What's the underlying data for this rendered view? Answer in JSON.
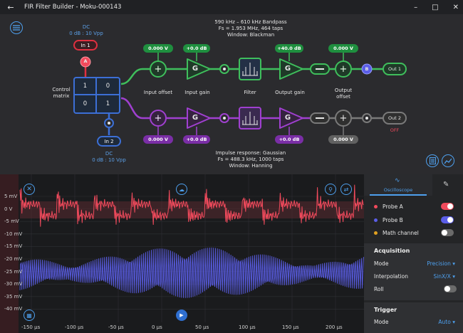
{
  "app": {
    "title": "FIR Filter Builder - Moku-000143"
  },
  "diagram": {
    "in1": {
      "coupling": "DC",
      "range": "0 dB : 10 Vpp",
      "label": "In 1",
      "probe": "A"
    },
    "in2": {
      "coupling": "DC",
      "range": "0 dB : 10 Vpp",
      "label": "In 2"
    },
    "control_matrix": {
      "label_line1": "Control",
      "label_line2": "matrix",
      "cells": [
        "1",
        "0",
        "0",
        "1"
      ]
    },
    "ch1": {
      "input_offset": "0.000 V",
      "input_gain": "+0.0 dB",
      "output_gain": "+40.0 dB",
      "output_offset": "0.000 V",
      "out_label": "Out 1",
      "probe": "B",
      "filter_info": [
        "590 kHz – 610 kHz Bandpass",
        "Fs = 1.953 MHz, 464 taps",
        "Window: Blackman"
      ]
    },
    "ch2": {
      "input_offset": "0.000 V",
      "input_gain": "+0.0 dB",
      "output_gain": "+0.0 dB",
      "output_offset": "0.000 V",
      "out_label": "Out 2",
      "out_state": "OFF",
      "filter_info": [
        "Impulse response: Gaussian",
        "Fs = 488.3 kHz, 1000 taps",
        "Window: Hanning"
      ]
    },
    "stage_labels": {
      "input_offset": "Input offset",
      "input_gain": "Input gain",
      "filter": "Filter",
      "output_gain": "Output gain",
      "output_offset_1": "Output",
      "output_offset_2": "offset"
    },
    "gain_glyph": "G"
  },
  "scope": {
    "y_ticks": [
      "5 mV",
      "0 V",
      "-5 mV",
      "-10 mV",
      "-15 mV",
      "-20 mV",
      "-25 mV",
      "-30 mV",
      "-35 mV",
      "-40 mV"
    ],
    "x_ticks": [
      "-150 µs",
      "-100 µs",
      "-50 µs",
      "0 µs",
      "50 µs",
      "100 µs",
      "150 µs",
      "200 µs"
    ],
    "probe_a_color": "#f04a5c",
    "probe_b_color": "#5b5ee8"
  },
  "panel": {
    "tab_label": "Oscilloscope",
    "probe_a": {
      "label": "Probe A",
      "on": true,
      "color": "#f04a5c"
    },
    "probe_b": {
      "label": "Probe B",
      "on": true,
      "color": "#5b5ee8"
    },
    "math": {
      "label": "Math channel",
      "on": false,
      "color": "#e0a020"
    },
    "acquisition": {
      "title": "Acquisition",
      "mode_label": "Mode",
      "mode_value": "Precision",
      "interp_label": "Interpolation",
      "interp_value": "SinX/X",
      "roll_label": "Roll"
    },
    "trigger": {
      "title": "Trigger",
      "mode_label": "Mode",
      "mode_value": "Auto"
    }
  }
}
